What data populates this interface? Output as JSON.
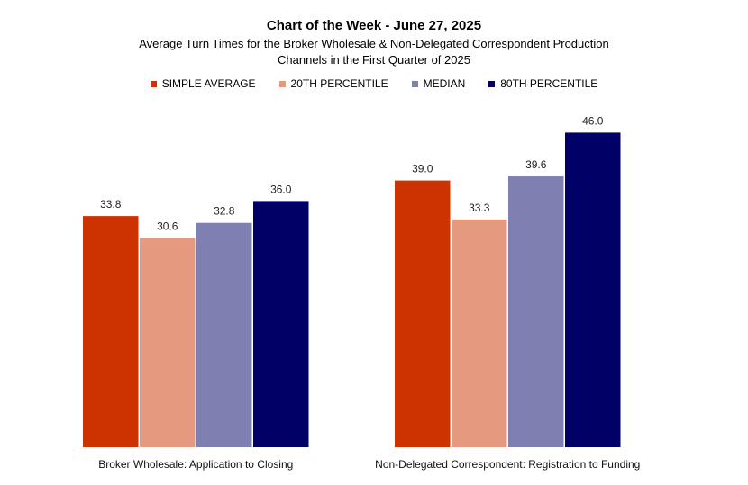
{
  "chart_data": {
    "type": "bar",
    "title": "Chart of the Week - June 27, 2025",
    "subtitle": [
      "Average Turn Times for the Broker Wholesale & Non-Delegated Correspondent Production",
      "Channels in the First Quarter of 2025"
    ],
    "xlabel": "",
    "ylabel": "",
    "ylim": [
      0,
      65
    ],
    "grid": false,
    "legend_position": "top",
    "categories": [
      "Broker Wholesale: Application to Closing",
      "Non-Delegated Correspondent: Registration to Funding"
    ],
    "series": [
      {
        "name": "SIMPLE AVERAGE",
        "color": "#CC3300",
        "values": [
          33.8,
          39.0
        ],
        "labels": [
          "33.8",
          "39.0"
        ]
      },
      {
        "name": "20TH PERCENTILE",
        "color": "#E59A80",
        "values": [
          30.6,
          33.3
        ],
        "labels": [
          "30.6",
          "33.3"
        ]
      },
      {
        "name": "MEDIAN",
        "color": "#7F7FB2",
        "values": [
          32.8,
          39.6
        ],
        "labels": [
          "32.8",
          "39.6"
        ]
      },
      {
        "name": "80TH PERCENTILE",
        "color": "#000066",
        "values": [
          36.0,
          46.0
        ],
        "labels": [
          "36.0",
          "46.0"
        ]
      }
    ]
  }
}
